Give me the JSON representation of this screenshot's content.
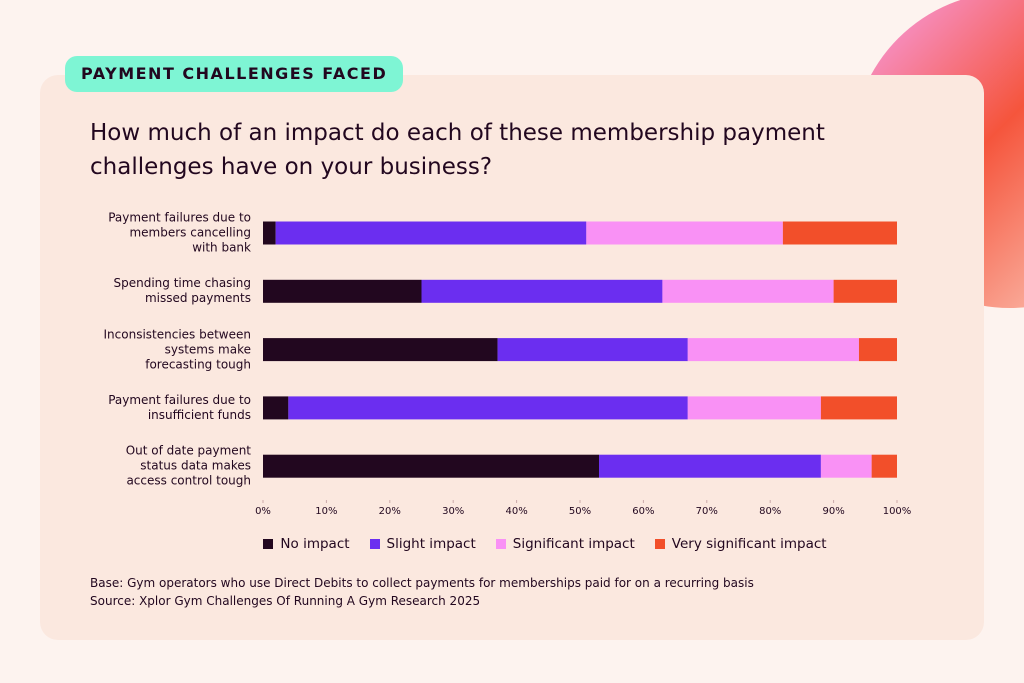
{
  "header": {
    "tag": "PAYMENT CHALLENGES FACED"
  },
  "chart_data": {
    "type": "bar",
    "orientation": "horizontal",
    "stacked": true,
    "title": "How much of an impact do each of these membership payment challenges have on your business?",
    "categories": [
      "Payment failures due to members cancelling with bank",
      "Spending time chasing missed payments",
      "Inconsistencies between systems make forecasting tough",
      "Payment failures due to insufficient funds",
      "Out of date payment status data makes access control tough"
    ],
    "series": [
      {
        "name": "No impact",
        "color": "#22071f",
        "values": [
          2,
          25,
          37,
          4,
          53
        ]
      },
      {
        "name": "Slight impact",
        "color": "#6b2ef0",
        "values": [
          49,
          38,
          30,
          63,
          35
        ]
      },
      {
        "name": "Significant impact",
        "color": "#f991f5",
        "values": [
          31,
          27,
          27,
          21,
          8
        ]
      },
      {
        "name": "Very significant impact",
        "color": "#f24f2a",
        "values": [
          18,
          10,
          6,
          12,
          4
        ]
      }
    ],
    "xlim": [
      0,
      100
    ],
    "xticks": [
      {
        "value": 0,
        "label": "0%"
      },
      {
        "value": 10,
        "label": "10%"
      },
      {
        "value": 20,
        "label": "20%"
      },
      {
        "value": 30,
        "label": "30%"
      },
      {
        "value": 40,
        "label": "40%"
      },
      {
        "value": 50,
        "label": "50%"
      },
      {
        "value": 60,
        "label": "60%"
      },
      {
        "value": 70,
        "label": "70%"
      },
      {
        "value": 80,
        "label": "80%"
      },
      {
        "value": 90,
        "label": "90%"
      },
      {
        "value": 100,
        "label": "100%"
      }
    ],
    "legend": "bottom"
  },
  "notes": [
    "Base: Gym operators who use Direct Debits to collect payments for memberships paid for on a recurring basis",
    "Source: Xplor Gym Challenges Of Running A Gym Research 2025"
  ]
}
